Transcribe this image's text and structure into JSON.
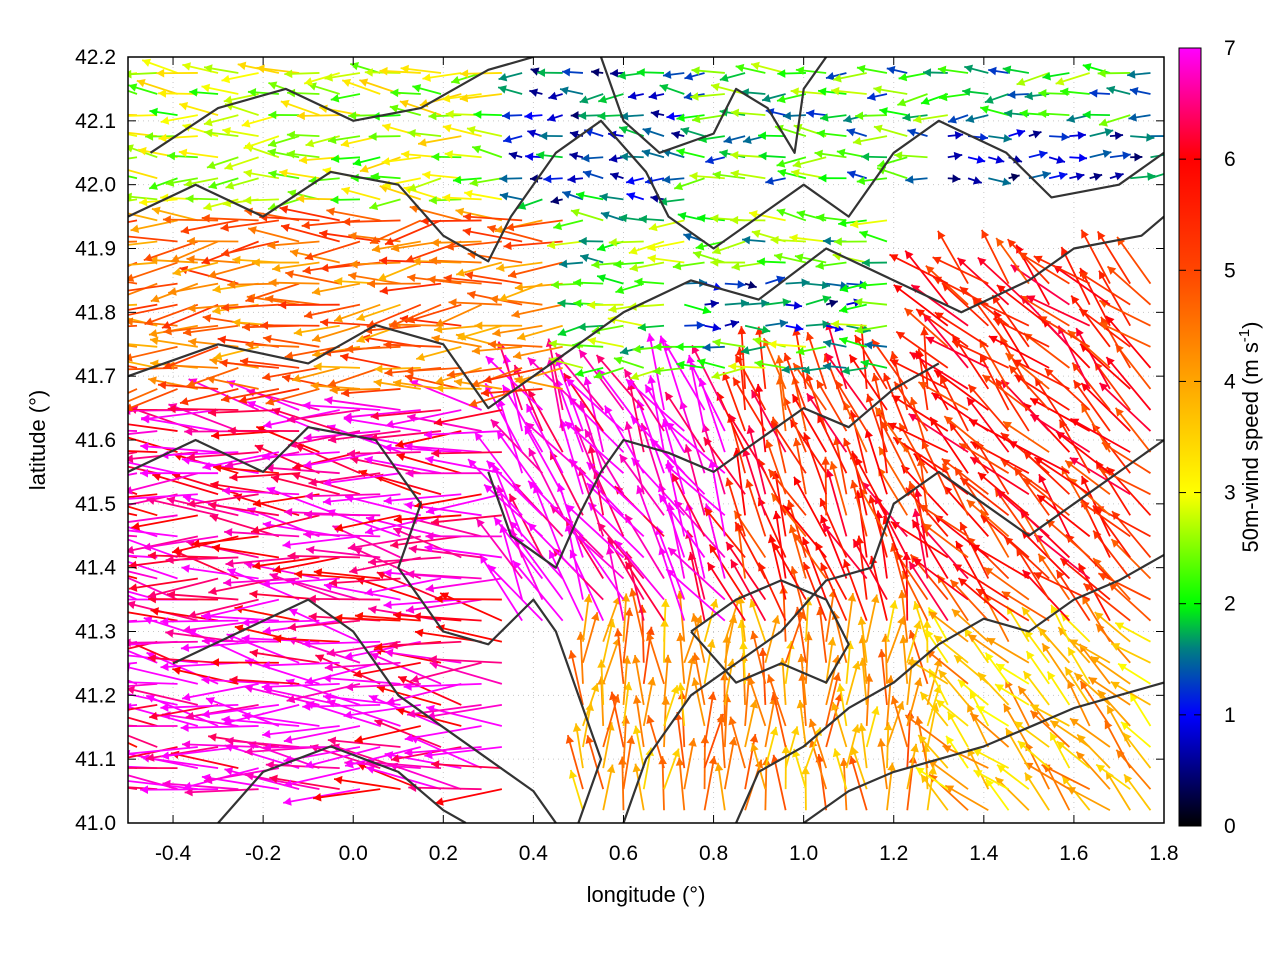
{
  "chart_data": {
    "type": "vector_field_with_contours",
    "xlabel": "longitude (°)",
    "ylabel": "latitude (°)",
    "xlim": [
      -0.5,
      1.8
    ],
    "ylim": [
      41.0,
      42.2
    ],
    "x_ticks": [
      "-0.4",
      "-0.2",
      "0.0",
      "0.2",
      "0.4",
      "0.6",
      "0.8",
      "1.0",
      "1.2",
      "1.4",
      "1.6",
      "1.8"
    ],
    "x_tick_values": [
      -0.4,
      -0.2,
      0.0,
      0.2,
      0.4,
      0.6,
      0.8,
      1.0,
      1.2,
      1.4,
      1.6,
      1.8
    ],
    "y_ticks": [
      "41.0",
      "41.1",
      "41.2",
      "41.3",
      "41.4",
      "41.5",
      "41.6",
      "41.7",
      "41.8",
      "41.9",
      "42.0",
      "42.1",
      "42.2"
    ],
    "y_tick_values": [
      41.0,
      41.1,
      41.2,
      41.3,
      41.4,
      41.5,
      41.6,
      41.7,
      41.8,
      41.9,
      42.0,
      42.1,
      42.2
    ],
    "grid": true,
    "colorbar": {
      "label": "50m-wind speed (m s",
      "label_sup": "-1",
      "label_end": ")",
      "range": [
        0,
        7
      ],
      "ticks": [
        "0",
        "1",
        "2",
        "3",
        "4",
        "5",
        "6",
        "7"
      ],
      "tick_values": [
        0,
        1,
        2,
        3,
        4,
        5,
        6,
        7
      ],
      "stops": [
        {
          "v": 0,
          "color": "#000000"
        },
        {
          "v": 1,
          "color": "#0000ff"
        },
        {
          "v": 1.6,
          "color": "#008080"
        },
        {
          "v": 2,
          "color": "#00ff00"
        },
        {
          "v": 3,
          "color": "#ffff00"
        },
        {
          "v": 4,
          "color": "#ffa500"
        },
        {
          "v": 5,
          "color": "#ff4500"
        },
        {
          "v": 6,
          "color": "#ff0000"
        },
        {
          "v": 7,
          "color": "#ff00ff"
        }
      ]
    },
    "vector_regions": [
      {
        "lon": [
          -0.5,
          0.35
        ],
        "lat": [
          41.95,
          42.2
        ],
        "speed": 2.8,
        "dir": 180
      },
      {
        "lon": [
          0.35,
          0.75
        ],
        "lat": [
          41.9,
          42.2
        ],
        "speed": 1.2,
        "dir": 180
      },
      {
        "lon": [
          0.75,
          1.8
        ],
        "lat": [
          42.0,
          42.2
        ],
        "speed": 2.0,
        "dir": 180
      },
      {
        "lon": [
          1.3,
          1.8
        ],
        "lat": [
          42.0,
          42.1
        ],
        "speed": 1.0,
        "dir": 0
      },
      {
        "lon": [
          -0.5,
          0.5
        ],
        "lat": [
          41.65,
          41.95
        ],
        "speed": 4.6,
        "dir": 185
      },
      {
        "lon": [
          0.5,
          1.2
        ],
        "lat": [
          41.7,
          41.95
        ],
        "speed": 2.2,
        "dir": 180
      },
      {
        "lon": [
          0.7,
          1.1
        ],
        "lat": [
          41.75,
          41.85
        ],
        "speed": 1.2,
        "dir": 0
      },
      {
        "lon": [
          -0.5,
          0.35
        ],
        "lat": [
          41.05,
          41.65
        ],
        "speed": 6.6,
        "dir": 175
      },
      {
        "lon": [
          0.35,
          0.85
        ],
        "lat": [
          41.3,
          41.65
        ],
        "speed": 7.0,
        "dir": 120
      },
      {
        "lon": [
          0.85,
          1.3
        ],
        "lat": [
          41.3,
          41.7
        ],
        "speed": 5.5,
        "dir": 110
      },
      {
        "lon": [
          1.3,
          1.8
        ],
        "lat": [
          41.3,
          41.85
        ],
        "speed": 5.5,
        "dir": 135
      },
      {
        "lon": [
          0.5,
          1.3
        ],
        "lat": [
          41.0,
          41.3
        ],
        "speed": 4.2,
        "dir": 90
      },
      {
        "lon": [
          1.3,
          1.8
        ],
        "lat": [
          41.0,
          41.3
        ],
        "speed": 3.8,
        "dir": 135
      }
    ],
    "contours": [
      [
        [
          -0.5,
          41.55
        ],
        [
          -0.35,
          41.6
        ],
        [
          -0.2,
          41.55
        ],
        [
          -0.1,
          41.62
        ],
        [
          0.05,
          41.6
        ],
        [
          0.15,
          41.5
        ],
        [
          0.1,
          41.4
        ],
        [
          0.2,
          41.3
        ],
        [
          0.3,
          41.28
        ],
        [
          0.4,
          41.35
        ],
        [
          0.45,
          41.3
        ],
        [
          0.5,
          41.2
        ],
        [
          0.55,
          41.1
        ],
        [
          0.5,
          41.0
        ]
      ],
      [
        [
          -0.5,
          41.7
        ],
        [
          -0.3,
          41.75
        ],
        [
          -0.1,
          41.72
        ],
        [
          0.05,
          41.78
        ],
        [
          0.2,
          41.75
        ],
        [
          0.3,
          41.65
        ],
        [
          0.4,
          41.7
        ],
        [
          0.5,
          41.75
        ],
        [
          0.6,
          41.8
        ],
        [
          0.75,
          41.85
        ],
        [
          0.9,
          41.82
        ],
        [
          1.05,
          41.9
        ],
        [
          1.2,
          41.85
        ],
        [
          1.35,
          41.8
        ],
        [
          1.5,
          41.85
        ],
        [
          1.6,
          41.9
        ],
        [
          1.75,
          41.92
        ],
        [
          1.8,
          41.95
        ]
      ],
      [
        [
          -0.5,
          41.95
        ],
        [
          -0.35,
          42.0
        ],
        [
          -0.2,
          41.95
        ],
        [
          -0.05,
          42.02
        ],
        [
          0.1,
          42.0
        ],
        [
          0.2,
          41.92
        ],
        [
          0.3,
          41.88
        ],
        [
          0.35,
          41.95
        ],
        [
          0.45,
          42.05
        ],
        [
          0.55,
          42.1
        ],
        [
          0.65,
          42.02
        ],
        [
          0.7,
          41.95
        ],
        [
          0.8,
          41.9
        ],
        [
          0.9,
          41.95
        ],
        [
          1.0,
          42.0
        ],
        [
          1.1,
          41.95
        ],
        [
          1.2,
          42.05
        ],
        [
          1.3,
          42.1
        ],
        [
          1.45,
          42.05
        ],
        [
          1.55,
          41.98
        ],
        [
          1.7,
          42.0
        ],
        [
          1.8,
          42.05
        ]
      ],
      [
        [
          -0.45,
          42.05
        ],
        [
          -0.3,
          42.12
        ],
        [
          -0.15,
          42.15
        ],
        [
          0.0,
          42.1
        ],
        [
          0.15,
          42.12
        ],
        [
          0.3,
          42.18
        ],
        [
          0.4,
          42.2
        ]
      ],
      [
        [
          0.55,
          42.2
        ],
        [
          0.6,
          42.1
        ],
        [
          0.68,
          42.05
        ],
        [
          0.8,
          42.08
        ],
        [
          0.85,
          42.15
        ],
        [
          0.92,
          42.12
        ],
        [
          0.98,
          42.05
        ],
        [
          1.0,
          42.15
        ],
        [
          1.05,
          42.2
        ]
      ],
      [
        [
          0.6,
          41.0
        ],
        [
          0.65,
          41.1
        ],
        [
          0.75,
          41.2
        ],
        [
          0.85,
          41.25
        ],
        [
          0.95,
          41.3
        ],
        [
          1.05,
          41.38
        ],
        [
          1.15,
          41.4
        ],
        [
          1.2,
          41.5
        ],
        [
          1.3,
          41.55
        ],
        [
          1.4,
          41.5
        ],
        [
          1.5,
          41.45
        ],
        [
          1.6,
          41.5
        ],
        [
          1.7,
          41.55
        ],
        [
          1.8,
          41.6
        ]
      ],
      [
        [
          0.85,
          41.0
        ],
        [
          0.9,
          41.08
        ],
        [
          1.0,
          41.12
        ],
        [
          1.1,
          41.18
        ],
        [
          1.2,
          41.22
        ],
        [
          1.3,
          41.28
        ],
        [
          1.4,
          41.32
        ],
        [
          1.5,
          41.3
        ],
        [
          1.6,
          41.35
        ],
        [
          1.7,
          41.38
        ],
        [
          1.8,
          41.42
        ]
      ],
      [
        [
          1.0,
          41.0
        ],
        [
          1.1,
          41.05
        ],
        [
          1.2,
          41.08
        ],
        [
          1.3,
          41.1
        ],
        [
          1.4,
          41.12
        ],
        [
          1.5,
          41.15
        ],
        [
          1.6,
          41.18
        ],
        [
          1.7,
          41.2
        ],
        [
          1.8,
          41.22
        ]
      ],
      [
        [
          0.3,
          41.55
        ],
        [
          0.35,
          41.45
        ],
        [
          0.45,
          41.4
        ],
        [
          0.5,
          41.48
        ],
        [
          0.55,
          41.55
        ],
        [
          0.6,
          41.6
        ],
        [
          0.7,
          41.58
        ],
        [
          0.8,
          41.55
        ],
        [
          0.9,
          41.6
        ],
        [
          1.0,
          41.65
        ],
        [
          1.1,
          41.62
        ],
        [
          1.2,
          41.68
        ],
        [
          1.3,
          41.72
        ]
      ],
      [
        [
          0.75,
          41.3
        ],
        [
          0.85,
          41.35
        ],
        [
          0.95,
          41.38
        ],
        [
          1.05,
          41.35
        ],
        [
          1.1,
          41.28
        ],
        [
          1.05,
          41.22
        ],
        [
          0.95,
          41.25
        ],
        [
          0.85,
          41.22
        ],
        [
          0.75,
          41.3
        ]
      ],
      [
        [
          -0.4,
          41.25
        ],
        [
          -0.25,
          41.3
        ],
        [
          -0.1,
          41.35
        ],
        [
          0.0,
          41.3
        ],
        [
          0.1,
          41.2
        ],
        [
          0.2,
          41.15
        ],
        [
          0.3,
          41.1
        ],
        [
          0.4,
          41.05
        ],
        [
          0.45,
          41.0
        ]
      ],
      [
        [
          -0.3,
          41.0
        ],
        [
          -0.2,
          41.08
        ],
        [
          -0.05,
          41.12
        ],
        [
          0.1,
          41.08
        ],
        [
          0.2,
          41.02
        ],
        [
          0.25,
          41.0
        ]
      ]
    ]
  }
}
